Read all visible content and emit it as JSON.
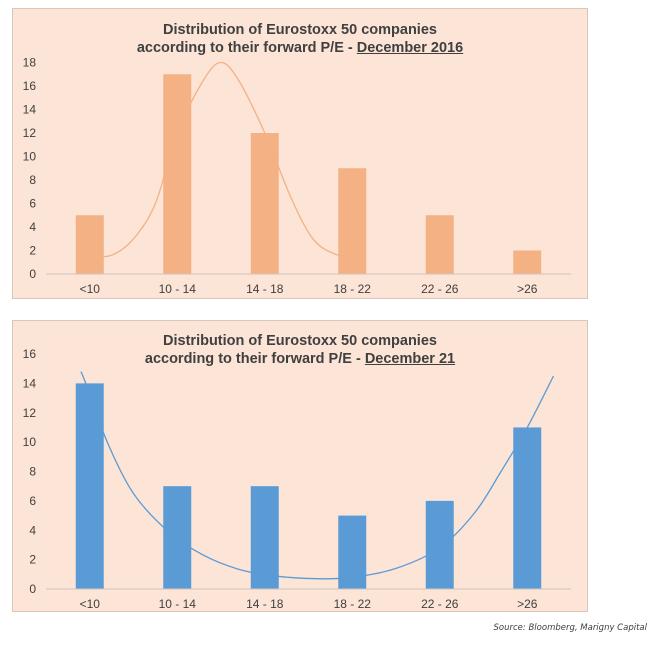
{
  "chart_data": [
    {
      "type": "bar",
      "title_line1": "Distribution of Eurostoxx 50 companies",
      "title_line2_prefix": "according to their forward P/E - ",
      "title_line2_highlight": "December 2016",
      "categories": [
        "<10",
        "10 - 14",
        "14 - 18",
        "18 - 22",
        "22 - 26",
        ">26"
      ],
      "values": [
        5,
        17,
        12,
        9,
        5,
        2
      ],
      "ylim": [
        0,
        18
      ],
      "yticks": [
        0,
        2,
        4,
        6,
        8,
        10,
        12,
        14,
        16,
        18
      ],
      "bar_color": "#f4b183",
      "trend_color": "#f4b183",
      "trend": [
        [
          0,
          1.5
        ],
        [
          0.25,
          1.6
        ],
        [
          0.5,
          3.0
        ],
        [
          0.75,
          6.0
        ],
        [
          1,
          12.0
        ],
        [
          1.3,
          16.5
        ],
        [
          1.5,
          18.0
        ],
        [
          1.7,
          16.5
        ],
        [
          2,
          12.0
        ],
        [
          2.3,
          6.5
        ],
        [
          2.55,
          3.0
        ],
        [
          2.8,
          1.7
        ],
        [
          3,
          1.5
        ]
      ],
      "grid": false,
      "legend": "none"
    },
    {
      "type": "bar",
      "title_line1": "Distribution of Eurostoxx 50 companies",
      "title_line2_prefix": "according to their forward P/E - ",
      "title_line2_highlight": "December 21",
      "categories": [
        "<10",
        "10 - 14",
        "14 - 18",
        "18 - 22",
        "22 - 26",
        ">26"
      ],
      "values": [
        14,
        7,
        7,
        5,
        6,
        11
      ],
      "ylim": [
        0,
        16
      ],
      "yticks": [
        0,
        2,
        4,
        6,
        8,
        10,
        12,
        14,
        16
      ],
      "bar_color": "#5b9bd5",
      "trend_color": "#5b9bd5",
      "trend": [
        [
          -0.1,
          14.8
        ],
        [
          0,
          13.3
        ],
        [
          0.2,
          10.0
        ],
        [
          0.5,
          6.5
        ],
        [
          0.9,
          3.9
        ],
        [
          1.3,
          2.3
        ],
        [
          1.7,
          1.35
        ],
        [
          2.1,
          0.9
        ],
        [
          2.6,
          0.7
        ],
        [
          3.0,
          0.8
        ],
        [
          3.5,
          1.4
        ],
        [
          4.0,
          2.8
        ],
        [
          4.4,
          5.2
        ],
        [
          4.7,
          8.0
        ],
        [
          5.0,
          11.0
        ],
        [
          5.3,
          14.5
        ]
      ],
      "grid": false,
      "legend": "none"
    }
  ],
  "source": "Source: Bloomberg, Marigny Capital"
}
